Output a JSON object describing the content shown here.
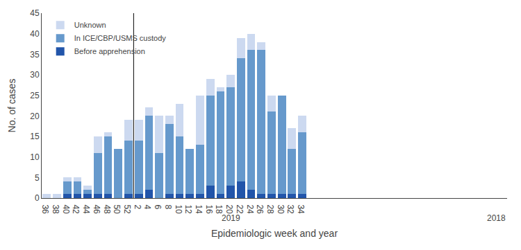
{
  "chart_data": {
    "type": "bar",
    "stacked": true,
    "categories": [
      "36",
      "38",
      "40",
      "42",
      "44",
      "46",
      "48",
      "50",
      "52",
      "2",
      "4",
      "6",
      "8",
      "10",
      "12",
      "14",
      "16",
      "18",
      "20",
      "22",
      "24",
      "26",
      "28",
      "30",
      "32",
      "34"
    ],
    "series": [
      {
        "name": "Before apprehension",
        "color": "#2255aa",
        "values": [
          0,
          0,
          1,
          1,
          1,
          1,
          1,
          0,
          1,
          1,
          2,
          0,
          1,
          1,
          1,
          1,
          3,
          1,
          3,
          4,
          2,
          1,
          1,
          1,
          1,
          1
        ]
      },
      {
        "name": "In ICE/CBP/USMS custody",
        "color": "#6699cc",
        "values": [
          0,
          0,
          3,
          3,
          1,
          10,
          14,
          12,
          13,
          13,
          18,
          11,
          17,
          14,
          11,
          12,
          22,
          25,
          24,
          30,
          34,
          35,
          20,
          24,
          11,
          15
        ]
      },
      {
        "name": "Unknown",
        "color": "#ccd9f0",
        "values": [
          1,
          1,
          1,
          1,
          1,
          4,
          1,
          0,
          5,
          5,
          2,
          9,
          2,
          8,
          0,
          12,
          4,
          1,
          3,
          5,
          4,
          2,
          4,
          0,
          5,
          4
        ]
      }
    ],
    "xlabel": "Epidemiologic week and year",
    "ylabel": "No. of cases",
    "annotations": [
      "2018",
      "2019"
    ],
    "ylim": [
      0,
      45
    ],
    "yticks": [
      0,
      5,
      10,
      15,
      20,
      25,
      30,
      35,
      40,
      45
    ],
    "grid": false,
    "legend": "upper left"
  }
}
